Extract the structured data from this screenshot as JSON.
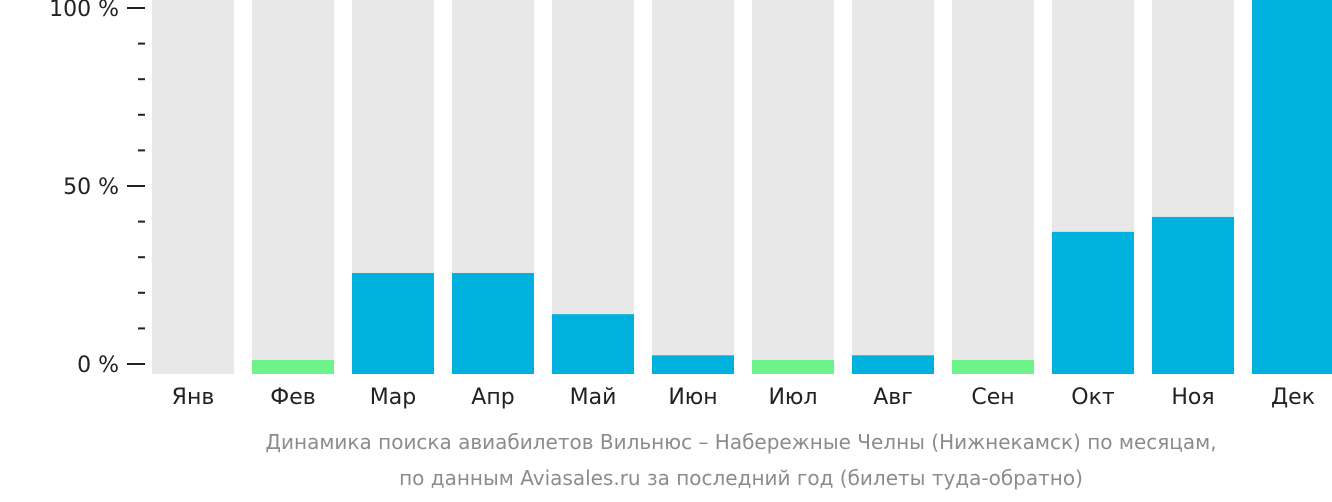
{
  "chart_data": {
    "type": "bar",
    "categories": [
      "Янв",
      "Фев",
      "Мар",
      "Апр",
      "Май",
      "Июн",
      "Июл",
      "Авг",
      "Сен",
      "Окт",
      "Ноя",
      "Дек"
    ],
    "values": [
      0,
      2,
      27,
      27,
      16,
      5,
      2,
      5,
      2,
      38,
      42,
      100
    ],
    "ylim": [
      0,
      100
    ],
    "y_ticks": [
      {
        "value": 0,
        "label": "0 %"
      },
      {
        "value": 50,
        "label": "50 %"
      },
      {
        "value": 100,
        "label": "100 %"
      }
    ],
    "minor_tick_step": 10,
    "grid": false,
    "legend": "none"
  },
  "caption": {
    "line1": "Динамика поиска авиабилетов Вильнюс – Набережные Челны (Нижнекамск) по месяцам,",
    "line2": "по данным Aviasales.ru за последний год (билеты туда-обратно)"
  },
  "colors": {
    "bar_main": "#00b1de",
    "bar_low": "#6ef28a",
    "bar_background": "#e8e8e8",
    "axis": "#222222"
  },
  "low_value_threshold": 3
}
